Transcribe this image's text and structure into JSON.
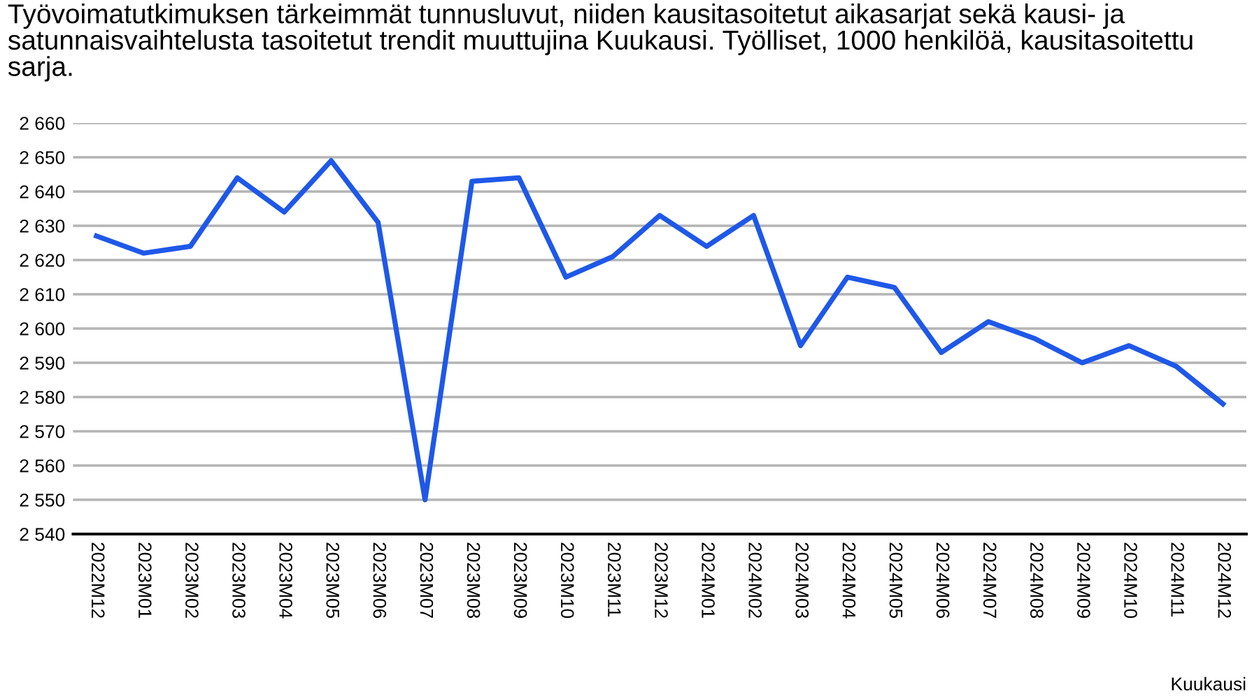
{
  "chart_data": {
    "type": "line",
    "title": "Työvoimatutkimuksen tärkeimmät tunnusluvut, niiden kausitasoitetut aikasarjat sekä kausi- ja satunnaisvaihtelusta tasoitetut trendit muuttujina Kuukausi. Työlliset, 1000 henkilöä, kausitasoitettu sarja.",
    "xlabel": "Kuukausi",
    "categories": [
      "2022M12",
      "2023M01",
      "2023M02",
      "2023M03",
      "2023M04",
      "2023M05",
      "2023M06",
      "2023M07",
      "2023M08",
      "2023M09",
      "2023M10",
      "2023M11",
      "2023M12",
      "2024M01",
      "2024M02",
      "2024M03",
      "2024M04",
      "2024M05",
      "2024M06",
      "2024M07",
      "2024M08",
      "2024M09",
      "2024M10",
      "2024M11",
      "2024M12"
    ],
    "series": [
      {
        "color": "#1f58e8",
        "values": [
          2627,
          2622,
          2624,
          2644,
          2634,
          2649,
          2631,
          2550,
          2643,
          2644,
          2615,
          2621,
          2633,
          2624,
          2633,
          2595,
          2615,
          2612,
          2593,
          2602,
          2597,
          2590,
          2595,
          2589,
          2578
        ]
      }
    ],
    "ylim": [
      2540,
      2660
    ],
    "yticks": [
      {
        "value": 2540,
        "label": "2 540"
      },
      {
        "value": 2550,
        "label": "2 550"
      },
      {
        "value": 2560,
        "label": "2 560"
      },
      {
        "value": 2570,
        "label": "2 570"
      },
      {
        "value": 2580,
        "label": "2 580"
      },
      {
        "value": 2590,
        "label": "2 590"
      },
      {
        "value": 2600,
        "label": "2 600"
      },
      {
        "value": 2610,
        "label": "2 610"
      },
      {
        "value": 2620,
        "label": "2 620"
      },
      {
        "value": 2630,
        "label": "2 630"
      },
      {
        "value": 2640,
        "label": "2 640"
      },
      {
        "value": 2650,
        "label": "2 650"
      },
      {
        "value": 2660,
        "label": "2 660"
      }
    ],
    "grid": "y",
    "legend": false,
    "marker": "none",
    "line_style": "solid"
  }
}
